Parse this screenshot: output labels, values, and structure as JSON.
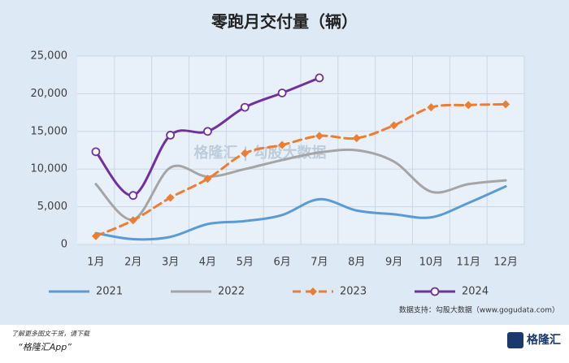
{
  "chart_data": {
    "type": "line",
    "title": "零跑月交付量（辆）",
    "categories": [
      "1月",
      "2月",
      "3月",
      "4月",
      "5月",
      "6月",
      "7月",
      "8月",
      "9月",
      "10月",
      "11月",
      "12月"
    ],
    "series": [
      {
        "name": "2021",
        "color": "#5b9bd5",
        "dash": false,
        "marker": "none",
        "values": [
          1500,
          700,
          1000,
          2700,
          3100,
          3900,
          6000,
          4500,
          4000,
          3600,
          5500,
          7700
        ]
      },
      {
        "name": "2022",
        "color": "#a5a5a5",
        "dash": false,
        "marker": "none",
        "values": [
          8000,
          3300,
          10200,
          9000,
          10000,
          11200,
          12200,
          12500,
          11000,
          7000,
          8000,
          8500
        ]
      },
      {
        "name": "2023",
        "color": "#ed7d31",
        "dash": true,
        "marker": "diamond",
        "values": [
          1100,
          3200,
          6200,
          8700,
          12100,
          13200,
          14400,
          14100,
          15800,
          18200,
          18500,
          18600
        ]
      },
      {
        "name": "2024",
        "color": "#7030a0",
        "dash": false,
        "marker": "circle",
        "values": [
          12300,
          6500,
          14500,
          15000,
          18200,
          20100,
          22100,
          null,
          null,
          null,
          null,
          null
        ]
      }
    ],
    "ylim": [
      0,
      25000
    ],
    "yticks": [
      0,
      {
        "value": 5000,
        "label": "5,000"
      },
      {
        "value": 10000,
        "label": "10,000"
      },
      {
        "value": 15000,
        "label": "15,000"
      },
      {
        "value": 20000,
        "label": "20,000"
      },
      {
        "value": 25000,
        "label": "25,000"
      }
    ],
    "grid": true,
    "legend": "bottom",
    "watermark": "格隆汇 | 勾股大数据",
    "source": "数据支持：勾股大数据（www.gogudata.com）"
  },
  "footer": {
    "line1": "了解更多图文干货，请下载",
    "line2": "“格隆汇App”",
    "logo": "格隆汇"
  }
}
